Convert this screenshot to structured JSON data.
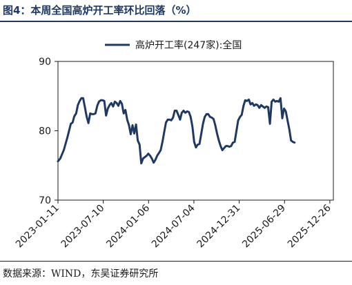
{
  "title": "图4：本周全国高炉开工率环比回落（%）",
  "source": "数据来源：WIND，东吴证券研究所",
  "chart_data": {
    "type": "line",
    "title": "图4：本周全国高炉开工率环比回落（%）",
    "xlabel": "",
    "ylabel": "",
    "ylim": [
      70,
      90
    ],
    "yticks": [
      70,
      80,
      90
    ],
    "xlim": [
      "2023-01-11",
      "2026-01-09"
    ],
    "xticks": [
      "2023-01-11",
      "2023-07-10",
      "2024-01-06",
      "2024-07-04",
      "2024-12-31",
      "2025-06-29",
      "2025-12-26"
    ],
    "grid": false,
    "legend_position": "top",
    "color": "#1f3864",
    "series": [
      {
        "name": "高炉开工率(247家):全国",
        "points": [
          [
            "2023-01-11",
            75.6
          ],
          [
            "2023-01-20",
            76.0
          ],
          [
            "2023-02-03",
            77.2
          ],
          [
            "2023-02-17",
            79.0
          ],
          [
            "2023-03-03",
            81.0
          ],
          [
            "2023-03-10",
            81.2
          ],
          [
            "2023-03-17",
            82.1
          ],
          [
            "2023-03-24",
            82.5
          ],
          [
            "2023-03-31",
            83.7
          ],
          [
            "2023-04-07",
            84.3
          ],
          [
            "2023-04-14",
            84.7
          ],
          [
            "2023-04-21",
            84.7
          ],
          [
            "2023-04-28",
            83.4
          ],
          [
            "2023-05-05",
            82.0
          ],
          [
            "2023-05-12",
            81.1
          ],
          [
            "2023-05-19",
            82.5
          ],
          [
            "2023-05-26",
            82.4
          ],
          [
            "2023-06-02",
            82.4
          ],
          [
            "2023-06-09",
            82.5
          ],
          [
            "2023-06-16",
            83.6
          ],
          [
            "2023-06-23",
            84.2
          ],
          [
            "2023-06-30",
            84.4
          ],
          [
            "2023-07-07",
            84.4
          ],
          [
            "2023-07-14",
            84.3
          ],
          [
            "2023-07-21",
            82.2
          ],
          [
            "2023-07-28",
            83.2
          ],
          [
            "2023-08-04",
            83.7
          ],
          [
            "2023-08-11",
            84.0
          ],
          [
            "2023-08-18",
            83.5
          ],
          [
            "2023-08-25",
            84.2
          ],
          [
            "2023-09-01",
            84.0
          ],
          [
            "2023-09-08",
            83.6
          ],
          [
            "2023-09-15",
            84.3
          ],
          [
            "2023-09-22",
            83.9
          ],
          [
            "2023-09-29",
            82.5
          ],
          [
            "2023-10-06",
            83.0
          ],
          [
            "2023-10-13",
            81.6
          ],
          [
            "2023-10-20",
            80.8
          ],
          [
            "2023-10-27",
            79.5
          ],
          [
            "2023-11-03",
            80.8
          ],
          [
            "2023-11-10",
            79.6
          ],
          [
            "2023-11-17",
            80.9
          ],
          [
            "2023-11-24",
            78.6
          ],
          [
            "2023-12-01",
            78.0
          ],
          [
            "2023-12-08",
            75.3
          ],
          [
            "2023-12-15",
            76.0
          ],
          [
            "2023-12-22",
            76.2
          ],
          [
            "2023-12-29",
            76.4
          ],
          [
            "2024-01-05",
            76.7
          ],
          [
            "2024-01-12",
            76.4
          ],
          [
            "2024-01-19",
            76.0
          ],
          [
            "2024-01-26",
            75.4
          ],
          [
            "2024-02-02",
            75.8
          ],
          [
            "2024-02-09",
            76.4
          ],
          [
            "2024-02-16",
            76.8
          ],
          [
            "2024-02-23",
            77.2
          ],
          [
            "2024-03-01",
            78.4
          ],
          [
            "2024-03-08",
            79.8
          ],
          [
            "2024-03-15",
            81.2
          ],
          [
            "2024-03-22",
            81.6
          ],
          [
            "2024-03-29",
            81.6
          ],
          [
            "2024-04-05",
            81.5
          ],
          [
            "2024-04-12",
            81.9
          ],
          [
            "2024-04-19",
            82.9
          ],
          [
            "2024-04-26",
            82.9
          ],
          [
            "2024-05-03",
            82.3
          ],
          [
            "2024-05-10",
            81.6
          ],
          [
            "2024-05-17",
            82.6
          ],
          [
            "2024-05-24",
            82.9
          ],
          [
            "2024-05-31",
            82.6
          ],
          [
            "2024-06-07",
            82.8
          ],
          [
            "2024-06-14",
            82.7
          ],
          [
            "2024-06-21",
            82.0
          ],
          [
            "2024-06-28",
            80.6
          ],
          [
            "2024-07-05",
            78.4
          ],
          [
            "2024-07-12",
            77.6
          ],
          [
            "2024-07-19",
            78.0
          ],
          [
            "2024-07-26",
            78.1
          ],
          [
            "2024-08-02",
            79.5
          ],
          [
            "2024-08-09",
            81.0
          ],
          [
            "2024-08-16",
            82.0
          ],
          [
            "2024-08-23",
            82.4
          ],
          [
            "2024-08-30",
            82.4
          ],
          [
            "2024-09-06",
            82.0
          ],
          [
            "2024-09-13",
            81.9
          ],
          [
            "2024-09-20",
            81.7
          ],
          [
            "2024-09-27",
            80.8
          ],
          [
            "2024-10-04",
            79.6
          ],
          [
            "2024-10-11",
            78.6
          ],
          [
            "2024-10-18",
            77.8
          ],
          [
            "2024-10-25",
            77.2
          ],
          [
            "2024-11-01",
            77.5
          ],
          [
            "2024-11-08",
            77.8
          ],
          [
            "2024-11-15",
            77.8
          ],
          [
            "2024-11-22",
            77.7
          ],
          [
            "2024-11-29",
            77.8
          ],
          [
            "2024-12-06",
            78.3
          ],
          [
            "2024-12-13",
            78.4
          ],
          [
            "2024-12-20",
            80.0
          ],
          [
            "2024-12-27",
            81.5
          ],
          [
            "2025-01-03",
            82.0
          ],
          [
            "2025-01-10",
            82.3
          ],
          [
            "2025-01-17",
            83.6
          ],
          [
            "2025-01-24",
            84.4
          ],
          [
            "2025-01-31",
            84.3
          ],
          [
            "2025-02-07",
            84.5
          ],
          [
            "2025-02-14",
            83.8
          ],
          [
            "2025-02-21",
            84.0
          ],
          [
            "2025-02-28",
            83.6
          ],
          [
            "2025-03-07",
            83.8
          ],
          [
            "2025-03-14",
            83.7
          ],
          [
            "2025-03-21",
            83.3
          ],
          [
            "2025-03-28",
            83.7
          ],
          [
            "2025-04-04",
            83.5
          ],
          [
            "2025-04-11",
            83.3
          ],
          [
            "2025-04-18",
            83.5
          ],
          [
            "2025-04-25",
            83.4
          ],
          [
            "2025-05-02",
            81.0
          ],
          [
            "2025-05-09",
            84.2
          ],
          [
            "2025-05-16",
            84.5
          ],
          [
            "2025-05-23",
            84.2
          ],
          [
            "2025-05-30",
            84.3
          ],
          [
            "2025-06-06",
            84.2
          ],
          [
            "2025-06-13",
            84.7
          ],
          [
            "2025-06-20",
            81.8
          ],
          [
            "2025-06-27",
            83.2
          ],
          [
            "2025-07-04",
            82.8
          ],
          [
            "2025-07-11",
            81.5
          ],
          [
            "2025-07-18",
            80.2
          ],
          [
            "2025-07-25",
            78.6
          ],
          [
            "2025-08-01",
            78.4
          ],
          [
            "2025-08-08",
            78.3
          ]
        ]
      }
    ]
  }
}
